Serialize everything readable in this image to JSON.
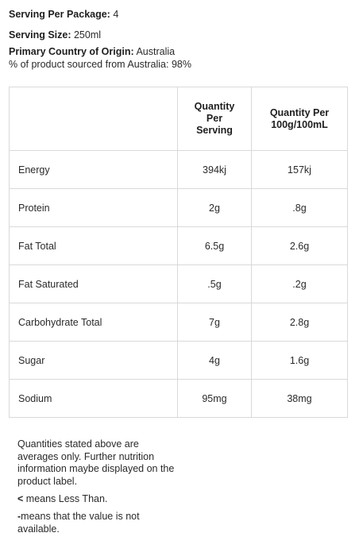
{
  "package": {
    "serving_per_package_label": "Serving Per Package:",
    "serving_per_package_value": " 4",
    "serving_size_label": "Serving Size:",
    "serving_size_value": " 250ml",
    "origin_label": "Primary Country of Origin:",
    "origin_value": " Australia",
    "sourced_text": "% of product sourced from Australia: 98%"
  },
  "table": {
    "headers": [
      "",
      "Quantity Per Serving",
      "Quantity Per 100g/100mL"
    ],
    "rows": [
      {
        "name": "Energy",
        "per_serving": "394kj",
        "per_100": "157kj"
      },
      {
        "name": "Protein",
        "per_serving": "2g",
        "per_100": ".8g"
      },
      {
        "name": "Fat Total",
        "per_serving": "6.5g",
        "per_100": "2.6g"
      },
      {
        "name": "Fat Saturated",
        "per_serving": ".5g",
        "per_100": ".2g"
      },
      {
        "name": "Carbohydrate Total",
        "per_serving": "7g",
        "per_100": "2.8g"
      },
      {
        "name": "Sugar",
        "per_serving": "4g",
        "per_100": "1.6g"
      },
      {
        "name": "Sodium",
        "per_serving": "95mg",
        "per_100": "38mg"
      }
    ]
  },
  "notes": {
    "disclaimer": "Quantities stated above are averages only. Further nutrition information maybe displayed on the product label.",
    "less_than_symbol": "<",
    "less_than_text": " means Less Than.",
    "dash_symbol": "-",
    "dash_text": "means that the value is not available."
  }
}
